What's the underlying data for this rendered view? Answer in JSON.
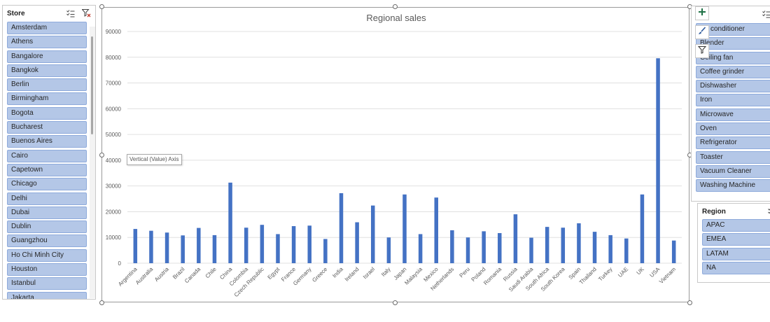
{
  "store_slicer": {
    "title": "Store",
    "items": [
      "Amsterdam",
      "Athens",
      "Bangalore",
      "Bangkok",
      "Berlin",
      "Birmingham",
      "Bogota",
      "Bucharest",
      "Buenos Aires",
      "Cairo",
      "Capetown",
      "Chicago",
      "Delhi",
      "Dubai",
      "Dublin",
      "Guangzhou",
      "Ho Chi Minh City",
      "Houston",
      "Istanbul",
      "Jakarta"
    ]
  },
  "product_slicer": {
    "items": [
      "Air conditioner",
      "Blender",
      "Ceiling fan",
      "Coffee grinder",
      "Dishwasher",
      "Iron",
      "Microwave",
      "Oven",
      "Refrigerator",
      "Toaster",
      "Vacuum Cleaner",
      "Washing Machine"
    ]
  },
  "region_slicer": {
    "title": "Region",
    "items": [
      "APAC",
      "EMEA",
      "LATAM",
      "NA"
    ]
  },
  "tooltip_text": "Vertical (Value) Axis",
  "colors": {
    "bar": "#4472c4",
    "slicer_item": "#b4c7e7",
    "add_icon": "#1e7145"
  },
  "icons": {
    "multiselect": "multi-select-icon",
    "clear_filter": "clear-filter-icon",
    "add": "plus-icon",
    "brush": "brush-icon",
    "filter": "filter-icon"
  },
  "chart_data": {
    "type": "bar",
    "title": "Regional sales",
    "xlabel": "",
    "ylabel": "",
    "ylim": [
      0,
      90000
    ],
    "yticks": [
      "0",
      "10000",
      "20000",
      "30000",
      "40000",
      "50000",
      "60000",
      "70000",
      "80000",
      "90000"
    ],
    "grid": true,
    "categories": [
      "Argentina",
      "Australia",
      "Austria",
      "Brazil",
      "Canada",
      "Chile",
      "China",
      "Colombia",
      "Czech Republic",
      "Egypt",
      "France",
      "Germany",
      "Greece",
      "India",
      "Ireland",
      "Israel",
      "Italy",
      "Japan",
      "Malaysia",
      "Mexico",
      "Netherlands",
      "Peru",
      "Poland",
      "Romania",
      "Russia",
      "Saudi Arabia",
      "South Africa",
      "South Korea",
      "Spain",
      "Thailand",
      "Turkey",
      "UAE",
      "UK",
      "USA",
      "Vietnam"
    ],
    "series": [
      {
        "values": [
          13300,
          12600,
          11900,
          10800,
          13700,
          10900,
          31300,
          13800,
          14900,
          11300,
          14400,
          14600,
          9400,
          27200,
          15900,
          22400,
          10000,
          26700,
          11300,
          25500,
          12800,
          10000,
          12400,
          11700,
          19000,
          9900,
          14100,
          13800,
          15500,
          12200,
          10900,
          9600,
          26700,
          79600,
          8800
        ]
      }
    ]
  }
}
